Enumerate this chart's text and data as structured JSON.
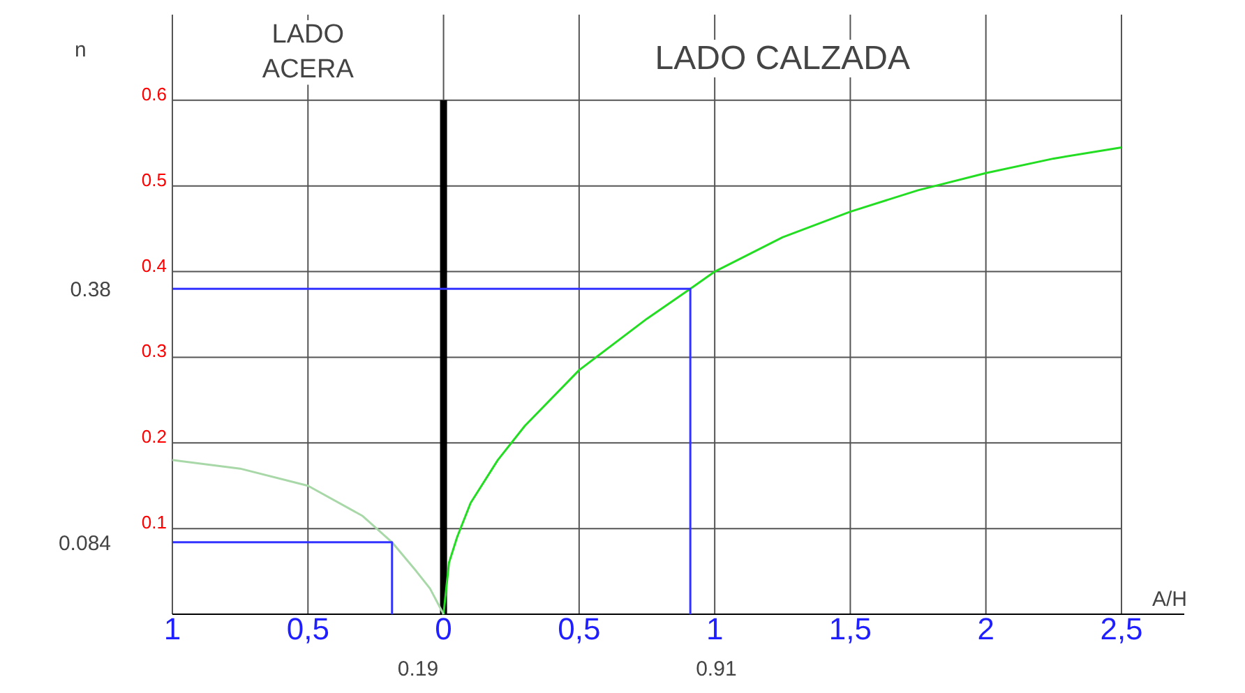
{
  "chart_data": {
    "type": "line",
    "xlabel": "A/H",
    "ylabel": "n",
    "xlim": [
      -1,
      2.5
    ],
    "ylim": [
      0,
      0.7
    ],
    "xticks": [
      {
        "value": -1,
        "label": "1"
      },
      {
        "value": -0.5,
        "label": "0,5"
      },
      {
        "value": 0,
        "label": "0"
      },
      {
        "value": 0.5,
        "label": "0,5"
      },
      {
        "value": 1,
        "label": "1"
      },
      {
        "value": 1.5,
        "label": "1,5"
      },
      {
        "value": 2,
        "label": "2"
      },
      {
        "value": 2.5,
        "label": "2,5"
      }
    ],
    "yticks": [
      0.1,
      0.2,
      0.3,
      0.4,
      0.5,
      0.6
    ],
    "grid": true,
    "series": [
      {
        "color": "#22dd22",
        "x": [
          0,
          0.02,
          0.05,
          0.1,
          0.2,
          0.3,
          0.5,
          0.75,
          0.91,
          1,
          1.25,
          1.5,
          1.75,
          2,
          2.25,
          2.5
        ],
        "values": [
          0,
          0.06,
          0.09,
          0.13,
          0.18,
          0.22,
          0.285,
          0.345,
          0.38,
          0.4,
          0.44,
          0.47,
          0.495,
          0.515,
          0.532,
          0.545
        ]
      },
      {
        "color": "#a8d8a8",
        "x": [
          -1,
          -0.75,
          -0.5,
          -0.3,
          -0.19,
          -0.1,
          -0.05,
          0
        ],
        "values": [
          0.18,
          0.17,
          0.15,
          0.115,
          0.084,
          0.05,
          0.03,
          0
        ]
      },
      {
        "color": "#3333ff",
        "x": [
          -1,
          -0.19,
          -0.19
        ],
        "values": [
          0.084,
          0.084,
          0
        ]
      },
      {
        "color": "#3333ff",
        "x": [
          -1,
          0.91,
          0.91
        ],
        "values": [
          0.38,
          0.38,
          0
        ]
      }
    ],
    "ref_lines": [
      {
        "axis": "x",
        "value": 0,
        "color": "#000000"
      }
    ],
    "annotations": [
      "LADO ACERA",
      "LADO CALZADA",
      {
        "text": "0.084",
        "x": -1,
        "y": 0.084
      },
      {
        "text": "0.38",
        "x": -1,
        "y": 0.38
      },
      {
        "text": "0.19",
        "x": -0.19,
        "y": 0
      },
      {
        "text": "0.91",
        "x": 0.91,
        "y": 0
      }
    ]
  }
}
